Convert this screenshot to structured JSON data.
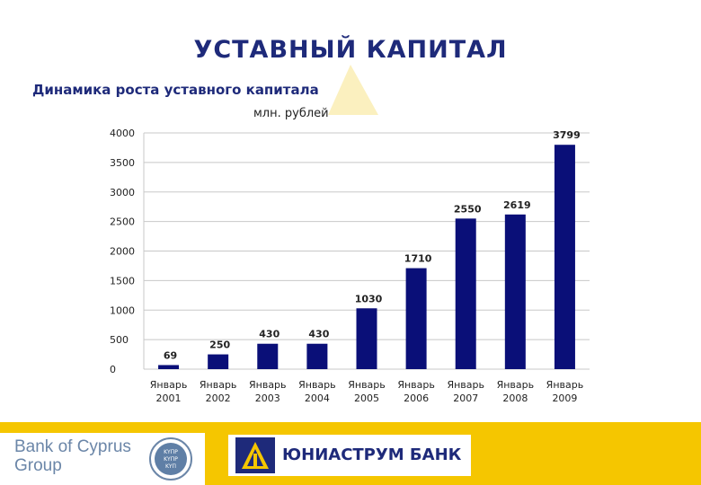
{
  "header": {
    "title": "УСТАВНЫЙ КАПИТАЛ",
    "subtitle": "Динамика роста уставного капитала",
    "unit": "млн. рублей"
  },
  "chart_data": {
    "type": "bar",
    "categories": [
      [
        "Январь",
        "2001"
      ],
      [
        "Январь",
        "2002"
      ],
      [
        "Январь",
        "2003"
      ],
      [
        "Январь",
        "2004"
      ],
      [
        "Январь",
        "2005"
      ],
      [
        "Январь",
        "2006"
      ],
      [
        "Январь",
        "2007"
      ],
      [
        "Январь",
        "2008"
      ],
      [
        "Январь",
        "2009"
      ]
    ],
    "values": [
      69,
      250,
      430,
      430,
      1030,
      1710,
      2550,
      2619,
      3799
    ],
    "y_ticks": [
      0,
      500,
      1000,
      1500,
      2000,
      2500,
      3000,
      3500,
      4000
    ],
    "ylim": [
      0,
      4000
    ],
    "grid": true,
    "bar_color": "#0a0f78"
  },
  "footer": {
    "boc_lines": [
      "Bank of Cyprus",
      "Group"
    ],
    "boc_seal_lines": [
      "ΚΥΠΡ",
      "ΚΥΠΡ",
      "ΚΥΠ"
    ],
    "uni_name": "ЮНИАСТРУМ  БАНК",
    "band_color": "#f5c600"
  }
}
